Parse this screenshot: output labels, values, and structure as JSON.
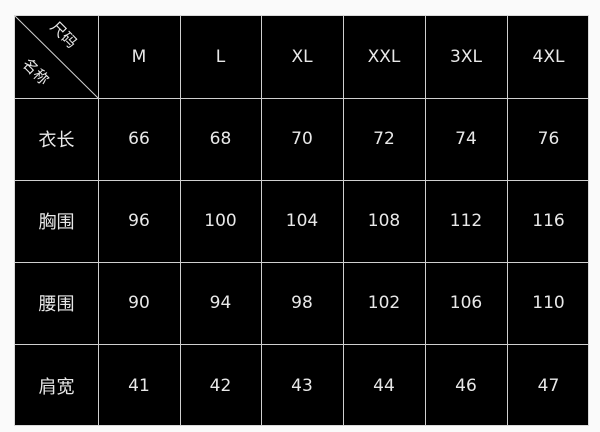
{
  "corner": {
    "top_label": "尺码",
    "bottom_label": "名称"
  },
  "sizes": [
    "M",
    "L",
    "XL",
    "XXL",
    "3XL",
    "4XL"
  ],
  "rows": [
    {
      "label": "衣长",
      "values": [
        "66",
        "68",
        "70",
        "72",
        "74",
        "76"
      ]
    },
    {
      "label": "胸围",
      "values": [
        "96",
        "100",
        "104",
        "108",
        "112",
        "116"
      ]
    },
    {
      "label": "腰围",
      "values": [
        "90",
        "94",
        "98",
        "102",
        "106",
        "110"
      ]
    },
    {
      "label": "肩宽",
      "values": [
        "41",
        "42",
        "43",
        "44",
        "46",
        "47"
      ]
    }
  ],
  "colors": {
    "background": "#000000",
    "grid": "#cfcfcf",
    "text": "#e8e8e8",
    "vertex_marker": "#33cc33"
  }
}
